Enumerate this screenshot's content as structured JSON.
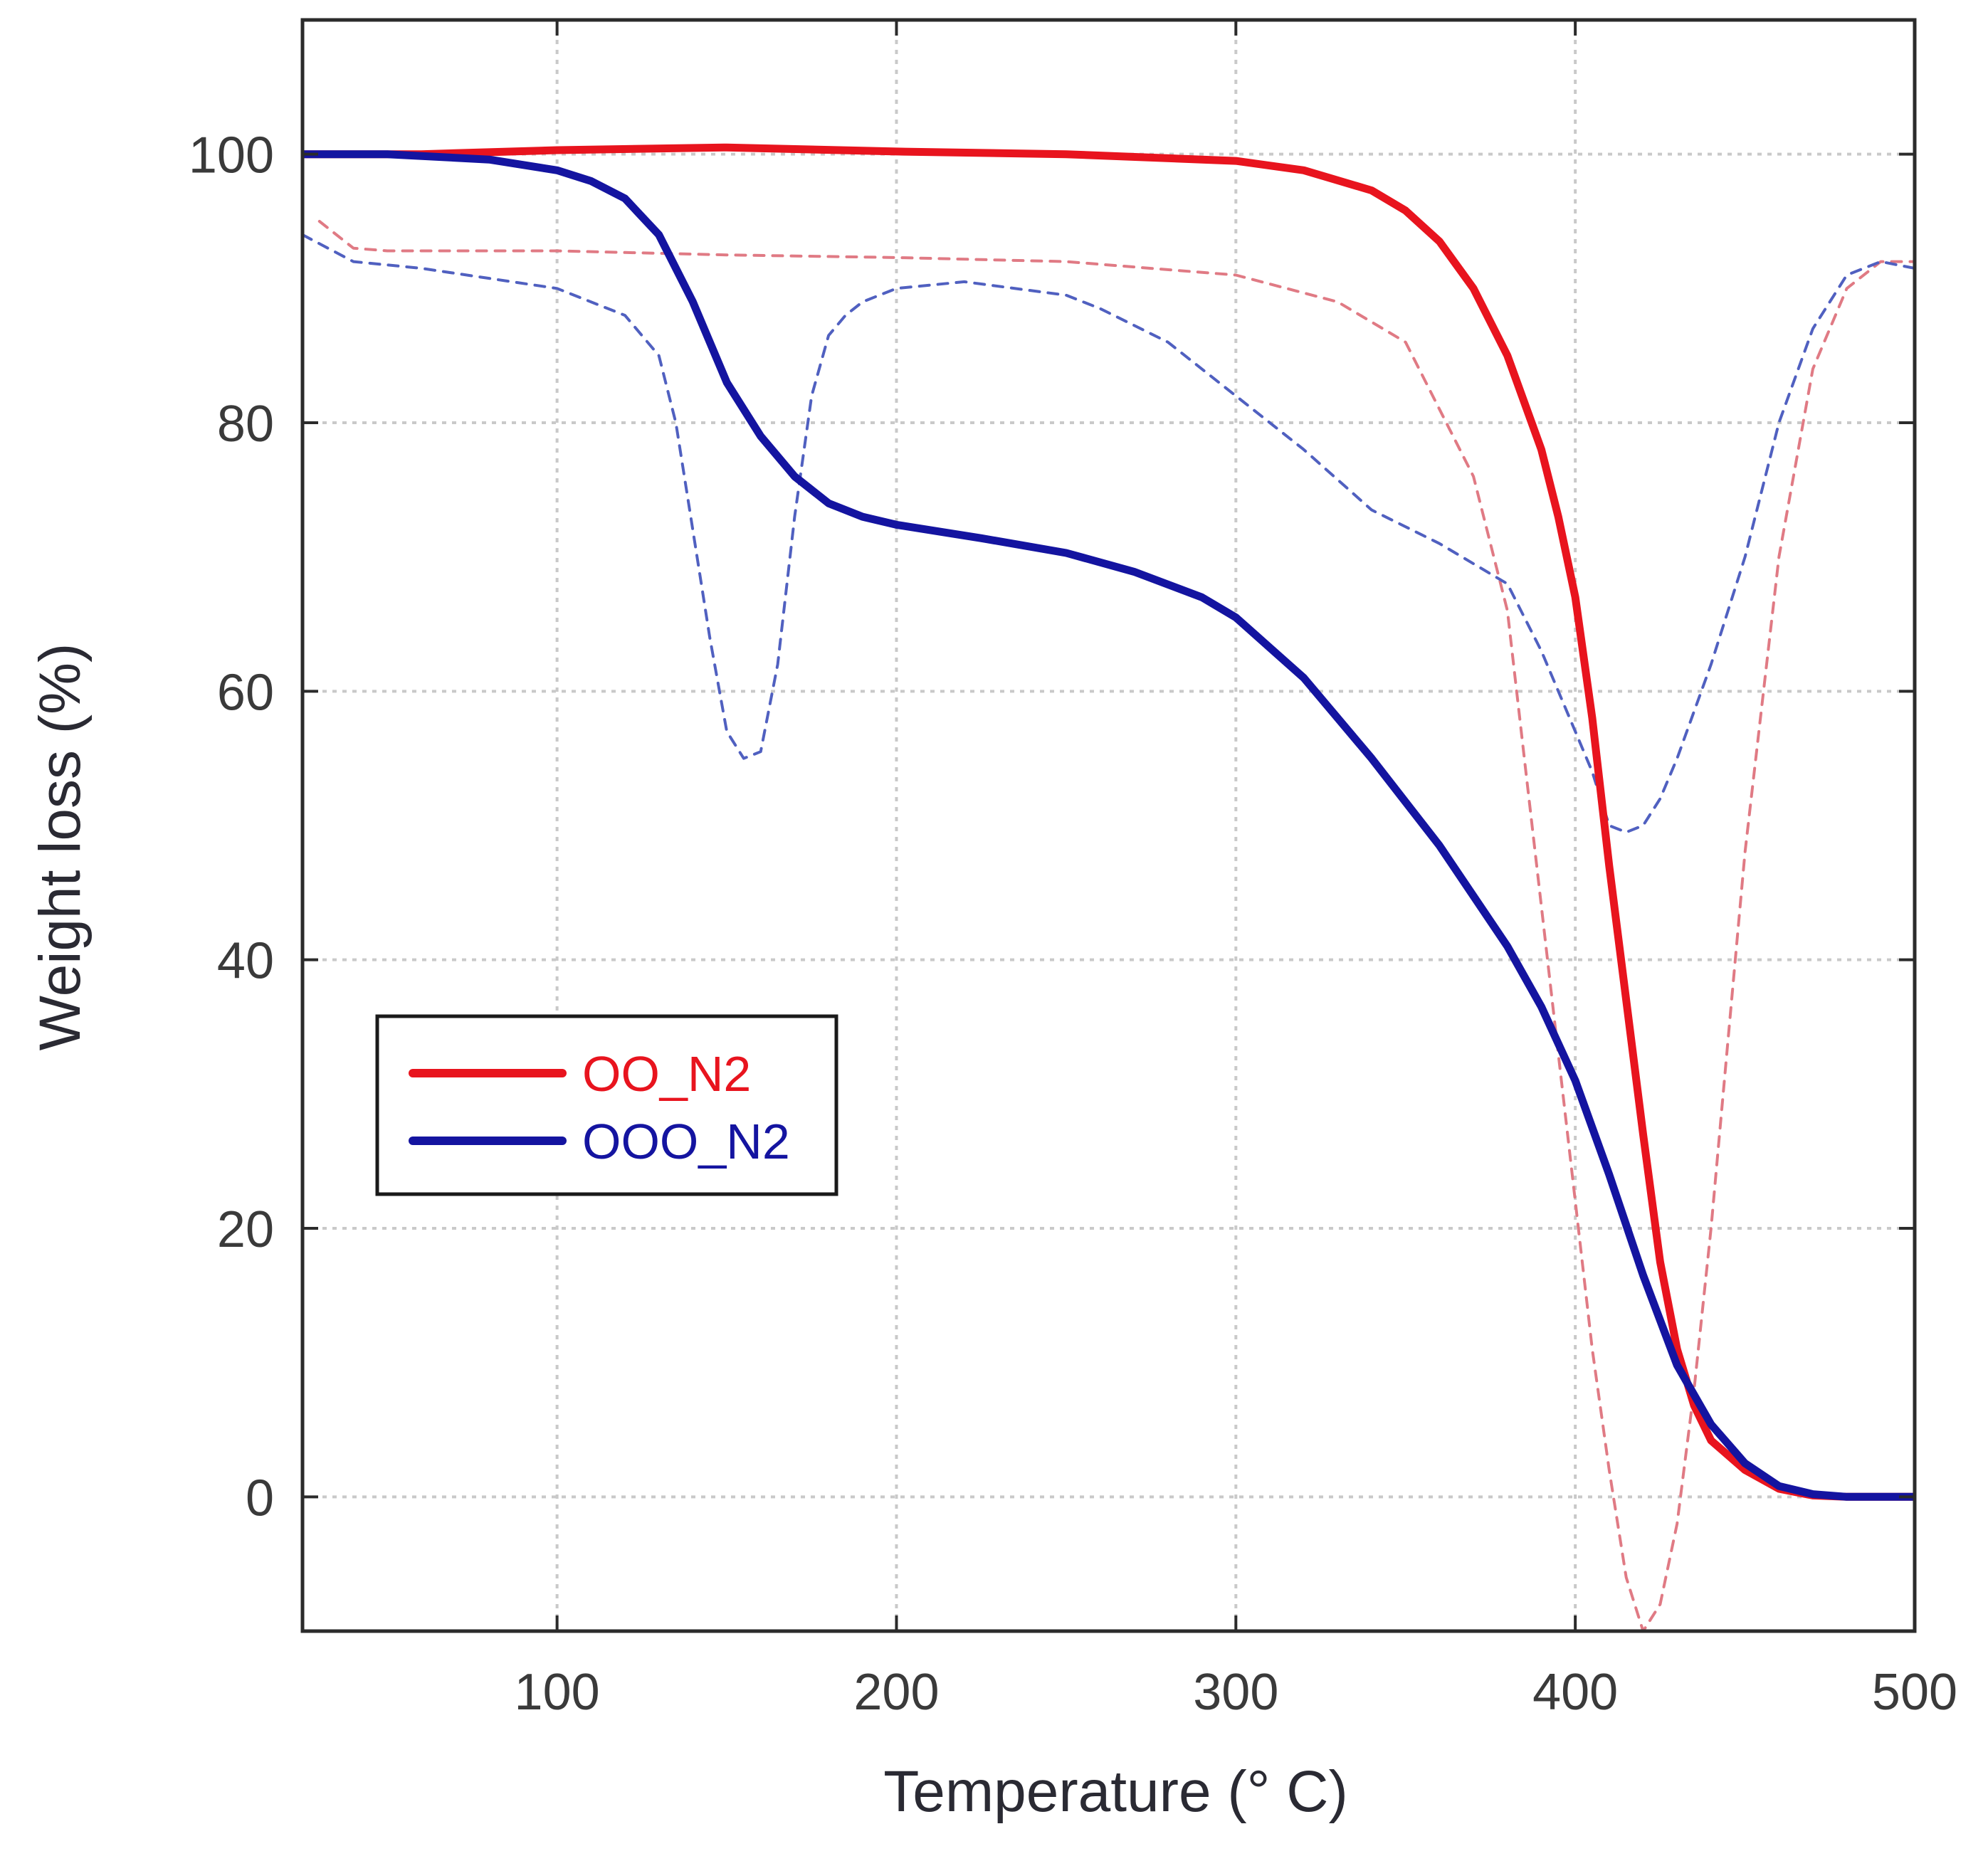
{
  "chart_data": {
    "type": "line",
    "title": "",
    "xlabel": "Temperature (° C)",
    "ylabel": "Weight loss (%)",
    "xlim": [
      25,
      500
    ],
    "ylim": [
      -10,
      110
    ],
    "xticks": [
      100,
      200,
      300,
      400,
      500
    ],
    "yticks": [
      0,
      20,
      40,
      60,
      80,
      100
    ],
    "grid": true,
    "legend_position": "center-left",
    "series": [
      {
        "name": "OO_N2",
        "color": "#e8141e",
        "style": "solid",
        "x": [
          25,
          60,
          100,
          150,
          200,
          250,
          300,
          320,
          340,
          350,
          360,
          370,
          380,
          390,
          395,
          400,
          405,
          410,
          415,
          420,
          425,
          430,
          435,
          440,
          450,
          460,
          470,
          480,
          500
        ],
        "y": [
          100,
          100,
          100.3,
          100.5,
          100.2,
          100,
          99.5,
          98.8,
          97.3,
          95.8,
          93.5,
          90,
          85,
          78,
          73,
          67,
          58,
          47,
          37,
          27,
          17.5,
          11,
          6.8,
          4.2,
          2,
          0.6,
          0.1,
          0,
          0
        ]
      },
      {
        "name": "OOO_N2",
        "color": "#1414a0",
        "style": "solid",
        "x": [
          25,
          50,
          80,
          100,
          110,
          120,
          130,
          140,
          150,
          160,
          170,
          180,
          190,
          200,
          225,
          250,
          270,
          290,
          300,
          320,
          340,
          360,
          380,
          390,
          400,
          410,
          420,
          430,
          440,
          450,
          460,
          470,
          480,
          500
        ],
        "y": [
          100,
          100,
          99.6,
          98.8,
          98,
          96.7,
          94,
          89,
          83,
          79,
          76,
          74,
          73,
          72.4,
          71.4,
          70.3,
          68.9,
          67,
          65.5,
          61,
          55,
          48.5,
          41,
          36.5,
          31,
          24,
          16.5,
          9.8,
          5.4,
          2.5,
          0.8,
          0.2,
          0,
          0
        ]
      },
      {
        "name": "",
        "color": "#e07a84",
        "style": "dashed",
        "x": [
          30,
          40,
          50,
          100,
          150,
          200,
          250,
          300,
          330,
          350,
          370,
          380,
          385,
          390,
          395,
          400,
          405,
          410,
          415,
          420,
          425,
          430,
          435,
          440,
          445,
          450,
          460,
          470,
          480,
          490,
          500
        ],
        "y": [
          95,
          93,
          92.8,
          92.8,
          92.5,
          92.3,
          92,
          91,
          89,
          86,
          76,
          66,
          55,
          44,
          33,
          22,
          11,
          2,
          -6,
          -10,
          -8,
          -2,
          8,
          20,
          34,
          48,
          70,
          84,
          90,
          92,
          92
        ]
      },
      {
        "name": "",
        "color": "#5060c0",
        "style": "dashed",
        "x": [
          25,
          40,
          60,
          100,
          120,
          130,
          135,
          140,
          145,
          150,
          155,
          160,
          165,
          170,
          175,
          180,
          185,
          190,
          200,
          220,
          250,
          260,
          280,
          300,
          320,
          340,
          360,
          380,
          390,
          400,
          405,
          410,
          415,
          420,
          425,
          430,
          440,
          450,
          460,
          470,
          480,
          490,
          500
        ],
        "y": [
          94,
          92,
          91.5,
          90,
          88,
          85,
          80,
          72,
          64,
          57,
          55,
          55.5,
          62,
          73,
          82,
          86.5,
          88,
          89,
          90,
          90.5,
          89.5,
          88.5,
          86,
          82,
          78,
          73.5,
          71,
          68,
          63,
          57,
          54,
          50,
          49.5,
          50,
          52,
          55,
          62,
          70,
          80,
          87,
          91,
          92,
          91.5
        ]
      }
    ]
  }
}
